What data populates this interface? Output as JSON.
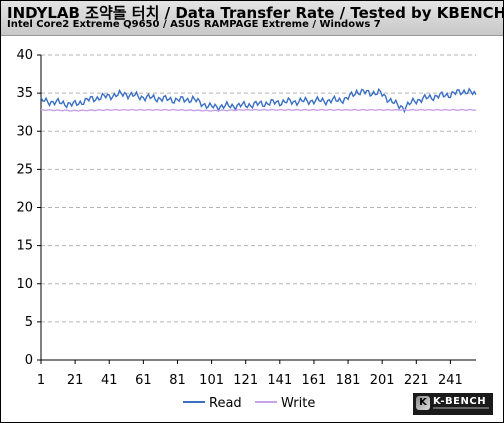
{
  "header": {
    "title": "INDYLAB 조약돌 터치 / Data Transfer Rate / Tested by KBENCH",
    "subtitle": "Intel Core2 Extreme Q9650 / ASUS RAMPAGE Extreme / Windows 7"
  },
  "logo": {
    "text": "K-BENCH"
  },
  "chart_data": {
    "type": "line",
    "title": "INDYLAB 조약돌 터치 / Data Transfer Rate / Tested by KBENCH",
    "xlabel": "",
    "ylabel": "",
    "ylim": [
      0,
      40
    ],
    "xlim": [
      1,
      256
    ],
    "yticks": [
      0,
      5,
      10,
      15,
      20,
      25,
      30,
      35,
      40
    ],
    "xticks": [
      1,
      21,
      41,
      61,
      81,
      101,
      121,
      141,
      161,
      181,
      201,
      221,
      241
    ],
    "grid": "horizontal-dashed",
    "legend": "bottom",
    "series": [
      {
        "name": "Read",
        "color": "#3a6fc4",
        "x": [
          1,
          10,
          20,
          30,
          40,
          50,
          60,
          70,
          80,
          90,
          96,
          100,
          110,
          120,
          130,
          140,
          150,
          160,
          170,
          180,
          186,
          190,
          200,
          206,
          210,
          214,
          220,
          230,
          240,
          246,
          250,
          256
        ],
        "y": [
          34.0,
          33.8,
          33.5,
          34.2,
          34.6,
          34.9,
          34.5,
          34.3,
          34.1,
          34.2,
          33.6,
          33.2,
          33.3,
          33.4,
          33.6,
          33.8,
          33.9,
          34.0,
          34.0,
          34.2,
          35.2,
          35.1,
          35.0,
          34.0,
          33.4,
          33.1,
          34.0,
          34.5,
          34.8,
          35.1,
          35.3,
          34.8
        ]
      },
      {
        "name": "Write",
        "color": "#c8a2e8",
        "x": [
          1,
          20,
          40,
          60,
          80,
          100,
          120,
          140,
          160,
          180,
          200,
          220,
          240,
          256
        ],
        "y": [
          32.8,
          32.7,
          32.8,
          32.8,
          32.8,
          32.7,
          32.8,
          32.8,
          32.8,
          32.8,
          32.8,
          32.8,
          32.8,
          32.8
        ]
      }
    ]
  }
}
